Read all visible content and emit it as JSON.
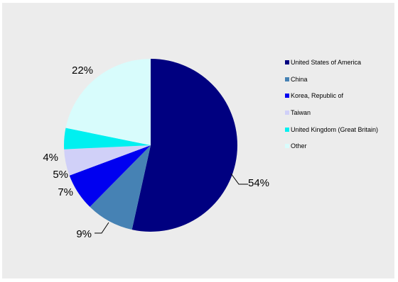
{
  "chart_data": {
    "type": "pie",
    "title": "",
    "start": "12 o'clock",
    "direction": "clockwise",
    "legend_position": "right",
    "slices": [
      {
        "name": "United States of America",
        "value": 54,
        "label": "54%",
        "color": "#000080"
      },
      {
        "name": "China",
        "value": 9,
        "label": "9%",
        "color": "#4682b4"
      },
      {
        "name": "Korea, Republic of",
        "value": 7,
        "label": "7%",
        "color": "#0000f0"
      },
      {
        "name": "Taiwan",
        "value": 5,
        "label": "5%",
        "color": "#d0d0f8"
      },
      {
        "name": "United Kingdom (Great Britain)",
        "value": 4,
        "label": "4%",
        "color": "#00f0f0"
      },
      {
        "name": "Other",
        "value": 22,
        "label": "22%",
        "color": "#d8fcfc"
      }
    ]
  }
}
